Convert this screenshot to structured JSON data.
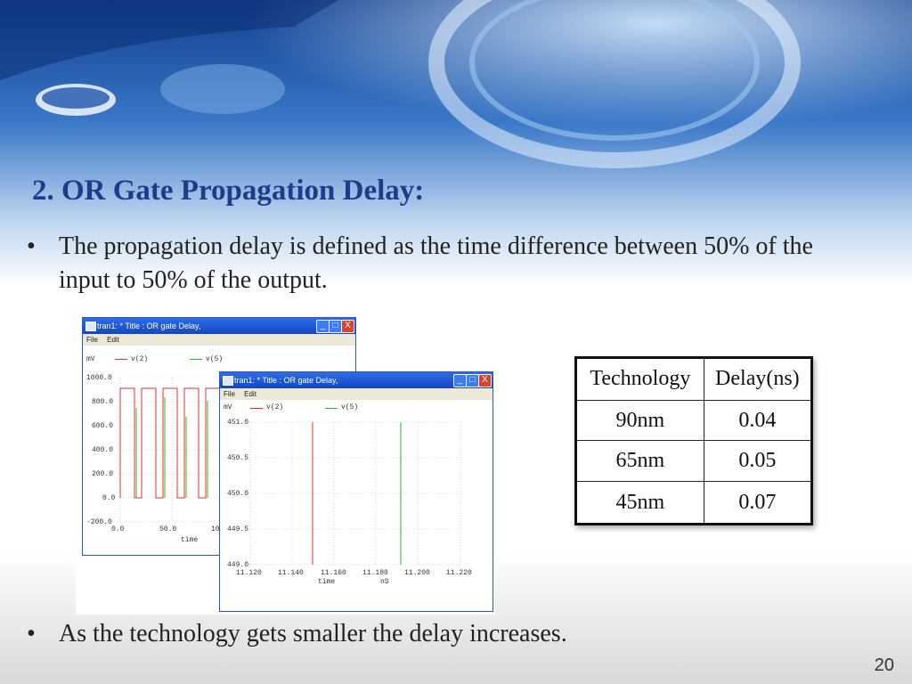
{
  "slide": {
    "title": "2. OR Gate Propagation Delay:",
    "bullets": [
      "The propagation delay is defined as the time difference between 50% of the input to 50% of the output.",
      "As the technology gets smaller the delay increases."
    ],
    "bullet_char": "•",
    "page_number": "20"
  },
  "window_back": {
    "title": "tran1: * Title : OR gate Delay,",
    "menu": [
      "File",
      "Edit"
    ],
    "unit_label": "mV",
    "legend": [
      "v(2)",
      "v(5)"
    ],
    "y_ticks": [
      "1000.0",
      "800.0",
      "600.0",
      "400.0",
      "200.0",
      "0.0",
      "-200.0"
    ],
    "x_ticks": [
      "0.0",
      "50.0",
      "10"
    ],
    "x_label": "time",
    "buttons": {
      "minimize": "_",
      "maximize": "□",
      "close": "X"
    }
  },
  "window_front": {
    "title": "tran1: * Title : OR gate Delay,",
    "menu": [
      "File",
      "Edit"
    ],
    "unit_label": "mV",
    "legend": [
      "v(2)",
      "v(5)"
    ],
    "y_ticks": [
      "451.0",
      "450.5",
      "450.0",
      "449.5",
      "449.0"
    ],
    "x_ticks": [
      "11.120",
      "11.140",
      "11.160",
      "11.180",
      "11.200",
      "11.220"
    ],
    "x_label": "time",
    "x_unit": "nS",
    "buttons": {
      "minimize": "_",
      "maximize": "□",
      "close": "X"
    }
  },
  "colors": {
    "title": "#1f3c8c",
    "v2_trace": "#e03030",
    "v5_trace": "#22c022",
    "window_titlebar": "#1f55d6"
  },
  "table": {
    "headers": [
      "Technology",
      "Delay(ns)"
    ],
    "rows": [
      [
        "90nm",
        "0.04"
      ],
      [
        "65nm",
        "0.05"
      ],
      [
        "45nm",
        "0.07"
      ]
    ]
  }
}
